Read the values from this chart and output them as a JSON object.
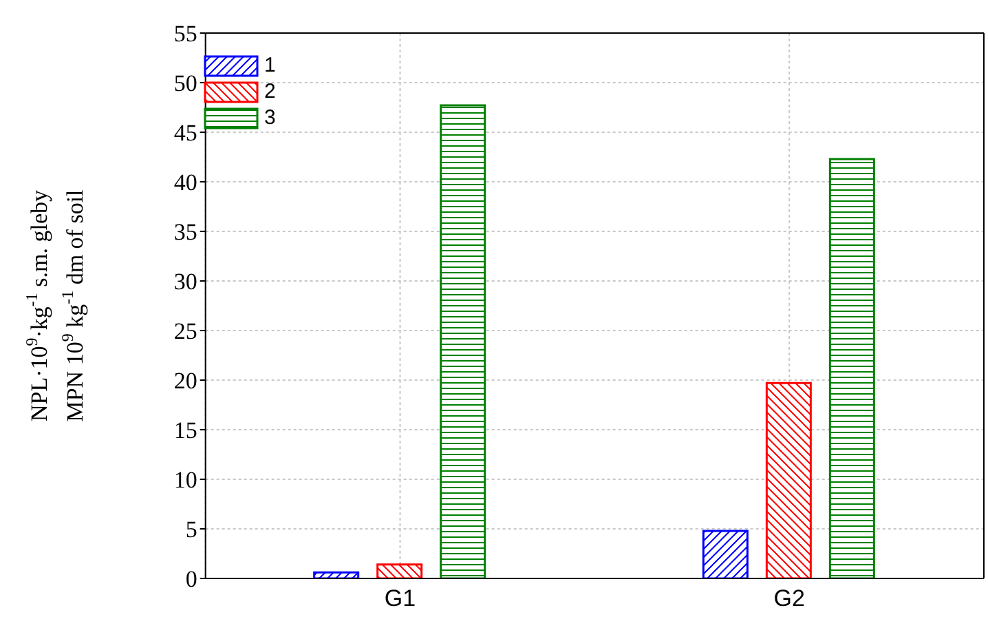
{
  "chart_data": {
    "type": "bar",
    "ylabel": "NPL·10$^{9}$·kg$^{-1}$ s.m. gleby\nMPN 10$^{9}$ kg$^{-1}$ dm of soil",
    "categories": [
      "G1",
      "G2"
    ],
    "series": [
      {
        "name": "1",
        "color": "#0000ff",
        "values": [
          0.6,
          4.8
        ]
      },
      {
        "name": "2",
        "color": "#ff0000",
        "values": [
          1.4,
          19.7
        ]
      },
      {
        "name": "3",
        "color": "#008000",
        "values": [
          47.7,
          42.3
        ]
      }
    ],
    "ylim": [
      0,
      55
    ],
    "yticks": [
      0,
      5,
      10,
      15,
      20,
      25,
      30,
      35,
      40,
      45,
      50,
      55
    ],
    "grid": true,
    "legend": "top left"
  }
}
